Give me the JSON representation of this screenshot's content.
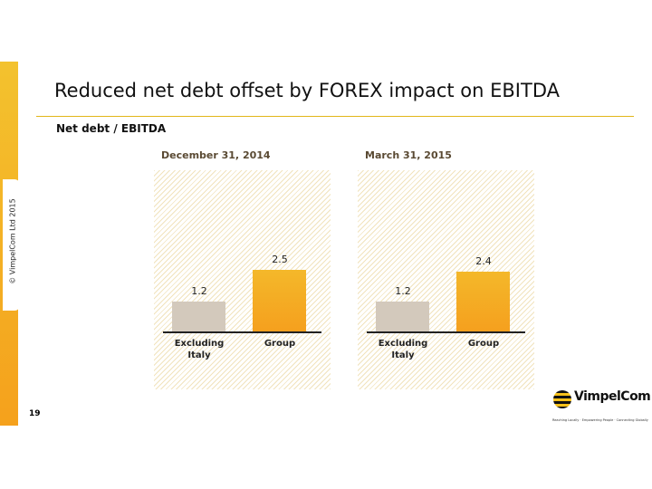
{
  "slide": {
    "title": "Reduced net debt offset by FOREX impact on EBITDA",
    "subtitle": "Net debt / EBITDA",
    "copyright": "© VimpelCom Ltd 2015",
    "page_number": "19",
    "logo": "VimpelCom",
    "tagline": "Reaching Locally · Empowering People · Connecting Globally"
  },
  "chart_data": [
    {
      "type": "bar",
      "title": "December 31, 2014",
      "categories": [
        "Excluding Italy",
        "Group"
      ],
      "values": [
        1.2,
        2.5
      ],
      "colors": [
        "#d3c9bc",
        "#f4b82a"
      ]
    },
    {
      "type": "bar",
      "title": "March 31, 2015",
      "categories": [
        "Excluding Italy",
        "Group"
      ],
      "values": [
        1.2,
        2.4
      ],
      "colors": [
        "#d3c9bc",
        "#f4b82a"
      ]
    }
  ]
}
